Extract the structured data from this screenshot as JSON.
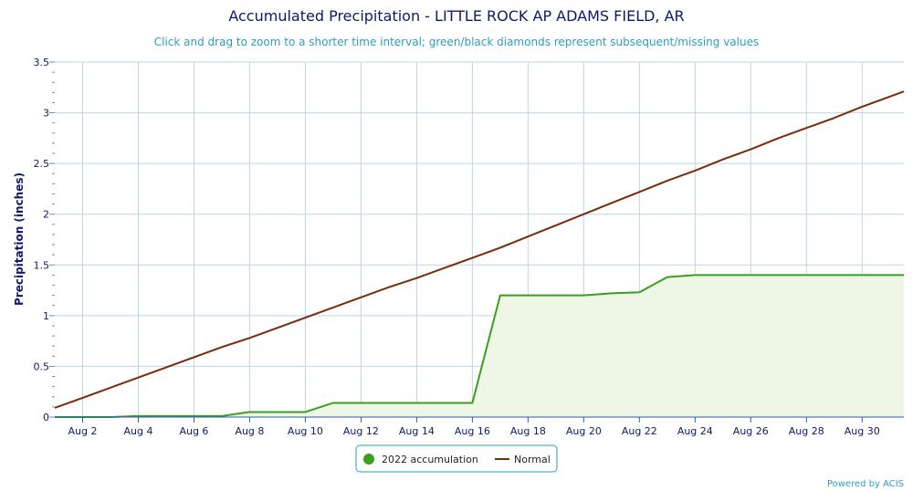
{
  "chart_data": {
    "type": "line",
    "title": "Accumulated Precipitation - LITTLE ROCK AP ADAMS FIELD, AR",
    "subtitle": "Click and drag to zoom to a shorter time interval; green/black diamonds represent subsequent/missing values",
    "ylabel": "Precipitation (inches)",
    "xlabel": "",
    "ylim": [
      0,
      3.5
    ],
    "yticks": [
      "0",
      "0.5",
      "1",
      "1.5",
      "2",
      "2.5",
      "3",
      "3.5"
    ],
    "x_day_range": [
      1,
      31.5
    ],
    "xtick_days": [
      2,
      4,
      6,
      8,
      10,
      12,
      14,
      16,
      18,
      20,
      22,
      24,
      26,
      28,
      30
    ],
    "xticks": [
      "Aug 2",
      "Aug 4",
      "Aug 6",
      "Aug 8",
      "Aug 10",
      "Aug 12",
      "Aug 14",
      "Aug 16",
      "Aug 18",
      "Aug 20",
      "Aug 22",
      "Aug 24",
      "Aug 26",
      "Aug 28",
      "Aug 30"
    ],
    "grid": true,
    "legend_position": "bottom-center",
    "series": [
      {
        "name": "2022 accumulation",
        "color": "#3a9e1e",
        "fill": "#eef6e6",
        "x": [
          1,
          2,
          3,
          4,
          5,
          6,
          7,
          8,
          9,
          10,
          11,
          12,
          13,
          14,
          15,
          16,
          17,
          18,
          19,
          20,
          21,
          22,
          23,
          24,
          25,
          26,
          27,
          28,
          29,
          30,
          31,
          31.5
        ],
        "values": [
          0,
          0,
          0,
          0.01,
          0.01,
          0.01,
          0.01,
          0.05,
          0.05,
          0.05,
          0.14,
          0.14,
          0.14,
          0.14,
          0.14,
          0.14,
          1.2,
          1.2,
          1.2,
          1.2,
          1.22,
          1.23,
          1.38,
          1.4,
          1.4,
          1.4,
          1.4,
          1.4,
          1.4,
          1.4,
          1.4,
          1.4
        ]
      },
      {
        "name": "Normal",
        "color": "#7a2a0a",
        "x": [
          1,
          2,
          3,
          4,
          5,
          6,
          7,
          8,
          9,
          10,
          11,
          12,
          13,
          14,
          15,
          16,
          17,
          18,
          19,
          20,
          21,
          22,
          23,
          24,
          25,
          26,
          27,
          28,
          29,
          30,
          31,
          31.5
        ],
        "values": [
          0.09,
          0.19,
          0.29,
          0.39,
          0.49,
          0.59,
          0.69,
          0.78,
          0.88,
          0.98,
          1.08,
          1.18,
          1.28,
          1.37,
          1.47,
          1.57,
          1.67,
          1.78,
          1.89,
          2.0,
          2.11,
          2.22,
          2.33,
          2.43,
          2.54,
          2.64,
          2.75,
          2.85,
          2.95,
          3.06,
          3.16,
          3.21
        ]
      }
    ]
  },
  "credit": "Powered by ACIS"
}
